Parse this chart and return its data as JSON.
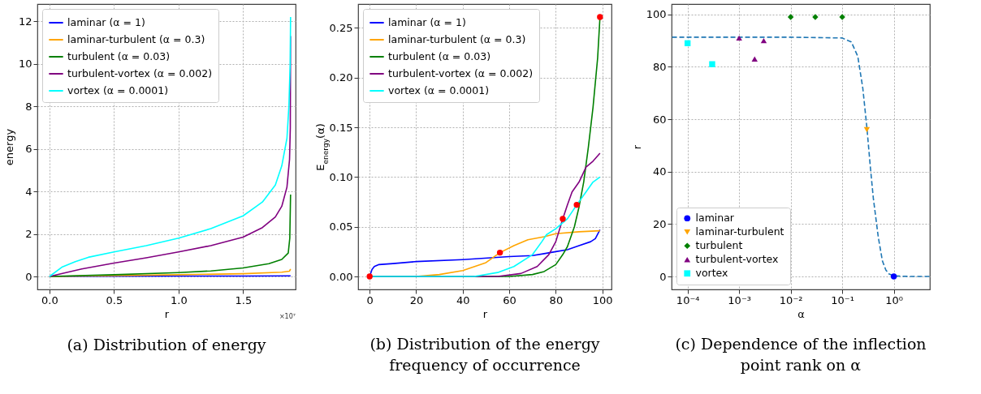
{
  "chart_data": [
    {
      "type": "line",
      "title": "(a) Distribution of energy",
      "xlabel": "r",
      "ylabel": "energy",
      "legend": "top left",
      "grid": true,
      "annotations": [
        "×10⁷"
      ],
      "xlim": [
        -0.094,
        1.907
      ],
      "ylim": [
        -0.61,
        12.81
      ],
      "xticks": [
        {
          "value": 0,
          "label": "0.0"
        },
        {
          "value": 0.5,
          "label": "0.5"
        },
        {
          "value": 1,
          "label": "1.0"
        },
        {
          "value": 1.5,
          "label": "1.5"
        }
      ],
      "yticks": [
        0,
        2,
        4,
        6,
        8,
        10,
        12
      ],
      "series": [
        {
          "name": "laminar (α = 1)",
          "color": "#0000ff",
          "x": [
            0,
            0.5,
            1.0,
            1.5,
            1.868
          ],
          "values": [
            0,
            0.01,
            0.02,
            0.02,
            0.03
          ]
        },
        {
          "name": "laminar-turbulent (α = 0.3)",
          "color": "#ffa500",
          "x": [
            0,
            0.5,
            1.0,
            1.5,
            1.8,
            1.86,
            1.868
          ],
          "values": [
            0,
            0.04,
            0.08,
            0.13,
            0.2,
            0.25,
            0.35
          ]
        },
        {
          "name": "turbulent (α = 0.03)",
          "color": "#008000",
          "x": [
            0,
            0.5,
            1.0,
            1.25,
            1.5,
            1.7,
            1.8,
            1.85,
            1.862,
            1.868
          ],
          "values": [
            0,
            0.08,
            0.18,
            0.26,
            0.4,
            0.6,
            0.8,
            1.1,
            1.8,
            3.85
          ]
        },
        {
          "name": "turbulent-vortex (α = 0.002)",
          "color": "#800080",
          "x": [
            0,
            0.25,
            0.5,
            0.75,
            1.0,
            1.25,
            1.5,
            1.65,
            1.75,
            1.8,
            1.84,
            1.86,
            1.866,
            1.868
          ],
          "values": [
            0,
            0.35,
            0.63,
            0.88,
            1.15,
            1.45,
            1.85,
            2.3,
            2.8,
            3.3,
            4.2,
            5.5,
            7,
            11.3
          ]
        },
        {
          "name": "vortex (α = 0.0001)",
          "color": "#00ffff",
          "x": [
            0,
            0.1,
            0.2,
            0.3,
            0.5,
            0.75,
            1.0,
            1.25,
            1.5,
            1.65,
            1.75,
            1.8,
            1.84,
            1.855,
            1.865,
            1.868
          ],
          "values": [
            0,
            0.45,
            0.7,
            0.9,
            1.15,
            1.45,
            1.8,
            2.25,
            2.85,
            3.5,
            4.3,
            5.2,
            6.5,
            8,
            10,
            12.2
          ]
        }
      ]
    },
    {
      "type": "line",
      "title": "(b) Distribution of the energy frequency of occurrence",
      "xlabel": "r",
      "ylabel": "E$_{energy}$(α)",
      "legend": "top left",
      "grid": true,
      "xlim": [
        -4.95,
        103.95
      ],
      "ylim": [
        -0.013,
        0.274
      ],
      "xticks": [
        0,
        20,
        40,
        60,
        80,
        100
      ],
      "yticks": [
        {
          "value": 0,
          "label": "0.00"
        },
        {
          "value": 0.05,
          "label": "0.05"
        },
        {
          "value": 0.1,
          "label": "0.10"
        },
        {
          "value": 0.15,
          "label": "0.15"
        },
        {
          "value": 0.2,
          "label": "0.20"
        },
        {
          "value": 0.25,
          "label": "0.25"
        }
      ],
      "series": [
        {
          "name": "laminar (α = 1)",
          "color": "#0000ff",
          "x": [
            0,
            1,
            2,
            4,
            10,
            20,
            40,
            60,
            70,
            75,
            80,
            85,
            90,
            95,
            97,
            99
          ],
          "values": [
            0,
            0.007,
            0.01,
            0.012,
            0.013,
            0.015,
            0.017,
            0.02,
            0.021,
            0.023,
            0.025,
            0.027,
            0.031,
            0.035,
            0.038,
            0.047
          ]
        },
        {
          "name": "laminar-turbulent (α = 0.3)",
          "color": "#ffa500",
          "x": [
            0,
            20,
            30,
            40,
            50,
            56,
            62,
            68,
            75,
            80,
            90,
            99
          ],
          "values": [
            0,
            0,
            0.002,
            0.006,
            0.014,
            0.024,
            0.031,
            0.037,
            0.04,
            0.043,
            0.045,
            0.046
          ]
        },
        {
          "name": "turbulent (α = 0.03)",
          "color": "#008000",
          "x": [
            0,
            60,
            70,
            75,
            80,
            83,
            85,
            88,
            90,
            92,
            94,
            96,
            98,
            99
          ],
          "values": [
            0,
            0,
            0.002,
            0.005,
            0.012,
            0.022,
            0.03,
            0.05,
            0.07,
            0.095,
            0.13,
            0.17,
            0.22,
            0.261
          ]
        },
        {
          "name": "turbulent-vortex (α = 0.002)",
          "color": "#800080",
          "x": [
            0,
            55,
            65,
            72,
            77,
            80,
            83,
            85,
            87,
            90,
            93,
            96,
            99
          ],
          "values": [
            0,
            0,
            0.003,
            0.01,
            0.022,
            0.035,
            0.058,
            0.072,
            0.085,
            0.095,
            0.11,
            0.116,
            0.124
          ]
        },
        {
          "name": "vortex (α = 0.0001)",
          "color": "#00ffff",
          "x": [
            0,
            45,
            55,
            62,
            70,
            74,
            76,
            80,
            85,
            89,
            93,
            96,
            99
          ],
          "values": [
            0,
            0,
            0.004,
            0.01,
            0.022,
            0.035,
            0.042,
            0.048,
            0.058,
            0.072,
            0.085,
            0.095,
            0.1
          ]
        },
        {
          "type": "scatter",
          "color": "#ff0000",
          "marker": "circle",
          "x": [
            0,
            56,
            83,
            89,
            99
          ],
          "values": [
            0,
            0.024,
            0.058,
            0.072,
            0.261
          ]
        }
      ]
    },
    {
      "type": "scatter",
      "title": "(c) Dependence of the inflection point rank on α",
      "xlabel": "α",
      "ylabel": "r",
      "legend": "bottom left",
      "grid": true,
      "log": "x",
      "xlim": [
        4.9e-05,
        5
      ],
      "ylim": [
        -4.95,
        103.95
      ],
      "xticks": [
        {
          "value": 0.0001,
          "label": "10⁻⁴"
        },
        {
          "value": 0.001,
          "label": "10⁻³"
        },
        {
          "value": 0.01,
          "label": "10⁻²"
        },
        {
          "value": 0.1,
          "label": "10⁻¹"
        },
        {
          "value": 1,
          "label": "10⁰"
        }
      ],
      "yticks": [
        0,
        20,
        40,
        60,
        80,
        100
      ],
      "series": [
        {
          "type": "line",
          "color": "#1f77b4",
          "line_style": "dashed",
          "x": [
            5e-05,
            0.001,
            0.01,
            0.1,
            0.15,
            0.2,
            0.25,
            0.3,
            0.35,
            0.4,
            0.5,
            0.6,
            0.7,
            0.8,
            1,
            2,
            5
          ],
          "values": [
            91.3,
            91.3,
            91.3,
            91,
            89.5,
            84,
            72,
            57,
            42,
            30,
            15,
            6,
            2.5,
            1,
            0.2,
            0,
            0
          ]
        },
        {
          "name": "laminar",
          "color": "#0000ff",
          "marker": "circle",
          "x": [
            1
          ],
          "values": [
            0
          ]
        },
        {
          "name": "laminar-turbulent",
          "color": "#ffa500",
          "marker": "triangle-down",
          "x": [
            0.3
          ],
          "values": [
            56
          ]
        },
        {
          "name": "turbulent",
          "color": "#008000",
          "marker": "diamond",
          "x": [
            0.01,
            0.03,
            0.1
          ],
          "values": [
            99,
            99,
            99
          ]
        },
        {
          "name": "turbulent-vortex",
          "color": "#800080",
          "marker": "triangle",
          "x": [
            0.001,
            0.002,
            0.003
          ],
          "values": [
            91,
            83,
            90
          ]
        },
        {
          "name": "vortex",
          "color": "#00ffff",
          "marker": "square",
          "x": [
            0.0001,
            0.0003
          ],
          "values": [
            89,
            81
          ]
        }
      ]
    }
  ]
}
